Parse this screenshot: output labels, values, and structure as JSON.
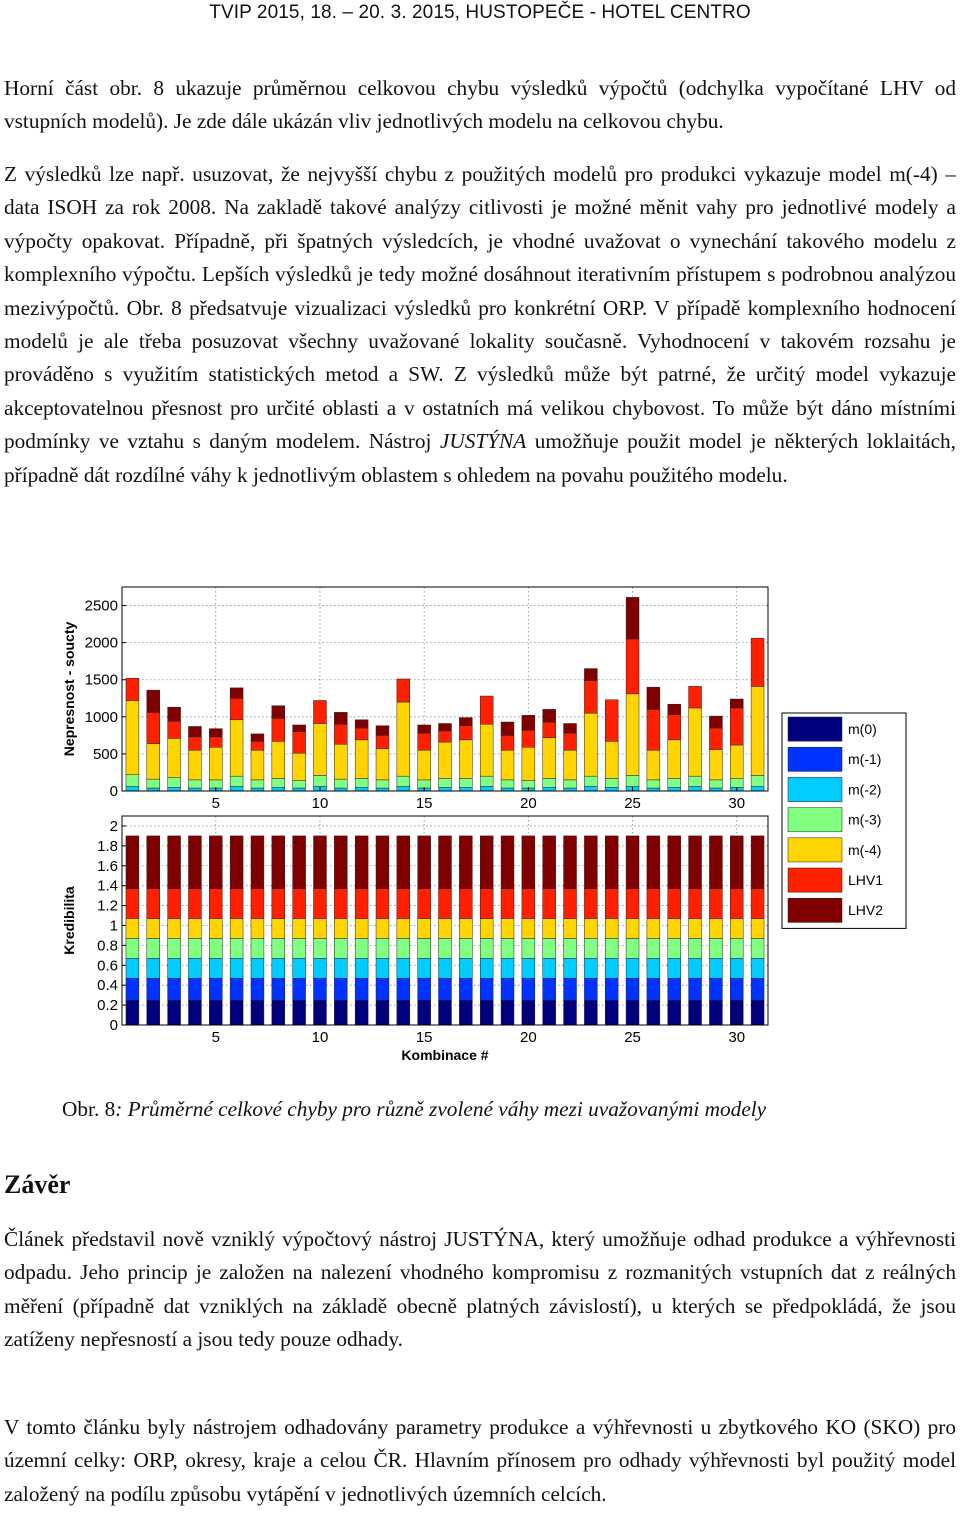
{
  "header": {
    "text": "TVIP 2015, 18. – 20. 3. 2015, HUSTOPEČE - HOTEL CENTRO"
  },
  "paragraphs": {
    "p1": "Horní část obr. 8 ukazuje průměrnou celkovou chybu výsledků výpočtů (odchylka vypočítané LHV od vstupních modelů). Je zde dále ukázán vliv jednotlivých modelu na celkovou chybu.",
    "p2_intro": "Z výsledků lze např. usuzovat, že nejvyšší chybu z použitých modelů pro produkci vykazuje model m(-4) – data ISOH za rok 2008. Na zakladě takové analýzy citlivosti je možné měnit vahy pro jednotlivé modely a výpočty opakovat. Případně, při špatných výsledcích, je vhodné uvažovat o vynechání takového modelu z komplexního výpočtu. Lepších výsledků je tedy možné dosáhnout iterativním přístupem s podrobnou analýzou mezivýpočtů. Obr. 8 předsatvuje vizualizaci výsledků pro konkrétní ORP. V případě komplexního hodnocení modelů je ale třeba posuzovat všechny uvažované lokality současně. Vyhodnocení v takovém rozsahu je prováděno s využitím statistických metod a SW. Z výsledků může být patrné, že určitý model vykazuje akceptovatelnou přesnost pro určité oblasti a v ostatních má velikou chybovost. To může být dáno místními podmínky ve vztahu s daným modelem. Nástroj",
    "p2_tool": "JUSTÝNA",
    "p2_end": " umožňuje použit model je některých loklaitách, případně dát rozdílné váhy k jednotlivým oblastem s ohledem na povahu použitého modelu.",
    "p3": "Článek představil nově vzniklý výpočtový nástroj JUSTÝNA, který umožňuje odhad produkce a výhřevnosti odpadu. Jeho princip je založen na nalezení vhodného kompromisu z rozmanitých vstupních dat z reálných měření (případně dat vzniklých na základě obecně platných závislostí), u kterých se předpokládá, že jsou zatíženy nepřesností a jsou tedy pouze odhady.",
    "p4": "V tomto článku byly nástrojem odhadovány parametry produkce a výhřevnosti u zbytkového KO (SKO) pro územní celky: ORP, okresy, kraje a celou ČR. Hlavním přínosem pro odhady výhřevnosti byl použitý model založený na podílu způsobu vytápění v jednotlivých územních celcích."
  },
  "caption": {
    "label": "Obr. 8",
    "text": ": Průměrné celkové chyby pro různě zvolené váhy mezi uvažovanými modely"
  },
  "section": {
    "title": "Závěr"
  },
  "colors": {
    "m0": "#00007f",
    "m-1": "#0033ff",
    "m-2": "#00ccff",
    "m-3": "#80ff80",
    "m-4": "#ffd400",
    "LHV1": "#ff2000",
    "LHV2": "#800000"
  },
  "chart_data": [
    {
      "type": "bar",
      "stacked": true,
      "ylabel": "Nepresnost - soucty",
      "xlabel": "",
      "ylim": [
        0,
        2750
      ],
      "yticks": [
        0,
        500,
        1000,
        1500,
        2000,
        2500
      ],
      "xticks": [
        5,
        10,
        15,
        20,
        25,
        30
      ],
      "grid": true,
      "categories": [
        1,
        2,
        3,
        4,
        5,
        6,
        7,
        8,
        9,
        10,
        11,
        12,
        13,
        14,
        15,
        16,
        17,
        18,
        19,
        20,
        21,
        22,
        23,
        24,
        25,
        26,
        27,
        28,
        29,
        30,
        31
      ],
      "series": [
        {
          "name": "m(0)",
          "values": [
            0,
            0,
            0,
            0,
            0,
            0,
            0,
            0,
            0,
            0,
            0,
            0,
            0,
            0,
            0,
            0,
            0,
            0,
            0,
            0,
            0,
            0,
            0,
            0,
            0,
            0,
            0,
            0,
            0,
            0,
            0
          ]
        },
        {
          "name": "m(-1)",
          "values": [
            0,
            0,
            0,
            0,
            0,
            0,
            0,
            0,
            0,
            0,
            0,
            0,
            0,
            0,
            0,
            0,
            0,
            0,
            0,
            0,
            0,
            0,
            0,
            0,
            0,
            0,
            0,
            0,
            0,
            0,
            0
          ]
        },
        {
          "name": "m(-2)",
          "values": [
            60,
            40,
            50,
            40,
            40,
            60,
            40,
            50,
            40,
            60,
            40,
            50,
            40,
            60,
            40,
            50,
            50,
            60,
            40,
            40,
            50,
            40,
            60,
            50,
            60,
            40,
            50,
            60,
            40,
            50,
            60
          ]
        },
        {
          "name": "m(-3)",
          "values": [
            160,
            120,
            130,
            110,
            110,
            140,
            110,
            120,
            100,
            150,
            120,
            120,
            110,
            140,
            110,
            120,
            120,
            140,
            110,
            100,
            120,
            110,
            140,
            120,
            150,
            110,
            120,
            140,
            110,
            120,
            150
          ]
        },
        {
          "name": "m(-4)",
          "values": [
            1000,
            480,
            530,
            400,
            440,
            760,
            400,
            500,
            370,
            700,
            470,
            520,
            420,
            1000,
            400,
            490,
            520,
            700,
            400,
            450,
            550,
            400,
            850,
            500,
            1100,
            400,
            520,
            920,
            410,
            450,
            1200
          ]
        },
        {
          "name": "LHV1",
          "values": [
            300,
            420,
            230,
            180,
            140,
            290,
            120,
            310,
            290,
            310,
            270,
            160,
            180,
            310,
            230,
            150,
            190,
            380,
            200,
            230,
            210,
            230,
            440,
            560,
            740,
            550,
            340,
            290,
            290,
            500,
            650
          ]
        },
        {
          "name": "LHV2",
          "values": [
            0,
            300,
            190,
            140,
            110,
            140,
            100,
            170,
            90,
            0,
            160,
            110,
            130,
            0,
            110,
            100,
            110,
            0,
            180,
            200,
            170,
            130,
            160,
            0,
            560,
            300,
            140,
            0,
            160,
            120,
            0
          ]
        }
      ]
    },
    {
      "type": "bar",
      "stacked": true,
      "ylabel": "Kredibilita",
      "xlabel": "Kombinace #",
      "ylim": [
        0,
        2.1
      ],
      "yticks": [
        0,
        0.2,
        0.4,
        0.6,
        0.8,
        1,
        1.2,
        1.4,
        1.6,
        1.8,
        2
      ],
      "xticks": [
        5,
        10,
        15,
        20,
        25,
        30
      ],
      "grid": true,
      "categories": [
        1,
        2,
        3,
        4,
        5,
        6,
        7,
        8,
        9,
        10,
        11,
        12,
        13,
        14,
        15,
        16,
        17,
        18,
        19,
        20,
        21,
        22,
        23,
        24,
        25,
        26,
        27,
        28,
        29,
        30,
        31
      ],
      "series": [
        {
          "name": "m(0)",
          "values": [
            0.25,
            0.25,
            0.25,
            0.25,
            0.25,
            0.25,
            0.25,
            0.25,
            0.25,
            0.25,
            0.25,
            0.25,
            0.25,
            0.25,
            0.25,
            0.25,
            0.25,
            0.25,
            0.25,
            0.25,
            0.25,
            0.25,
            0.25,
            0.25,
            0.25,
            0.25,
            0.25,
            0.25,
            0.25,
            0.25,
            0.25
          ]
        },
        {
          "name": "m(-1)",
          "values": [
            0.22,
            0.22,
            0.22,
            0.22,
            0.22,
            0.22,
            0.22,
            0.22,
            0.22,
            0.22,
            0.22,
            0.22,
            0.22,
            0.22,
            0.22,
            0.22,
            0.22,
            0.22,
            0.22,
            0.22,
            0.22,
            0.22,
            0.22,
            0.22,
            0.22,
            0.22,
            0.22,
            0.22,
            0.22,
            0.22,
            0.22
          ]
        },
        {
          "name": "m(-2)",
          "values": [
            0.2,
            0.2,
            0.2,
            0.2,
            0.2,
            0.2,
            0.2,
            0.2,
            0.2,
            0.2,
            0.2,
            0.2,
            0.2,
            0.2,
            0.2,
            0.2,
            0.2,
            0.2,
            0.2,
            0.2,
            0.2,
            0.2,
            0.2,
            0.2,
            0.2,
            0.2,
            0.2,
            0.2,
            0.2,
            0.2,
            0.2
          ]
        },
        {
          "name": "m(-3)",
          "values": [
            0.2,
            0.2,
            0.2,
            0.2,
            0.2,
            0.2,
            0.2,
            0.2,
            0.2,
            0.2,
            0.2,
            0.2,
            0.2,
            0.2,
            0.2,
            0.2,
            0.2,
            0.2,
            0.2,
            0.2,
            0.2,
            0.2,
            0.2,
            0.2,
            0.2,
            0.2,
            0.2,
            0.2,
            0.2,
            0.2,
            0.2
          ]
        },
        {
          "name": "m(-4)",
          "values": [
            0.2,
            0.2,
            0.2,
            0.2,
            0.2,
            0.2,
            0.2,
            0.2,
            0.2,
            0.2,
            0.2,
            0.2,
            0.2,
            0.2,
            0.2,
            0.2,
            0.2,
            0.2,
            0.2,
            0.2,
            0.2,
            0.2,
            0.2,
            0.2,
            0.2,
            0.2,
            0.2,
            0.2,
            0.2,
            0.2,
            0.2
          ]
        },
        {
          "name": "LHV1",
          "values": [
            0.3,
            0.3,
            0.3,
            0.3,
            0.3,
            0.3,
            0.3,
            0.3,
            0.3,
            0.3,
            0.3,
            0.3,
            0.3,
            0.3,
            0.3,
            0.3,
            0.3,
            0.3,
            0.3,
            0.3,
            0.3,
            0.3,
            0.3,
            0.3,
            0.3,
            0.3,
            0.3,
            0.3,
            0.3,
            0.3,
            0.3
          ]
        },
        {
          "name": "LHV2",
          "values": [
            0.53,
            0.53,
            0.53,
            0.53,
            0.53,
            0.53,
            0.53,
            0.53,
            0.53,
            0.53,
            0.53,
            0.53,
            0.53,
            0.53,
            0.53,
            0.53,
            0.53,
            0.53,
            0.53,
            0.53,
            0.53,
            0.53,
            0.53,
            0.53,
            0.53,
            0.53,
            0.53,
            0.53,
            0.53,
            0.53,
            0.53
          ]
        }
      ]
    }
  ],
  "legend": [
    "m(0)",
    "m(-1)",
    "m(-2)",
    "m(-3)",
    "m(-4)",
    "LHV1",
    "LHV2"
  ]
}
